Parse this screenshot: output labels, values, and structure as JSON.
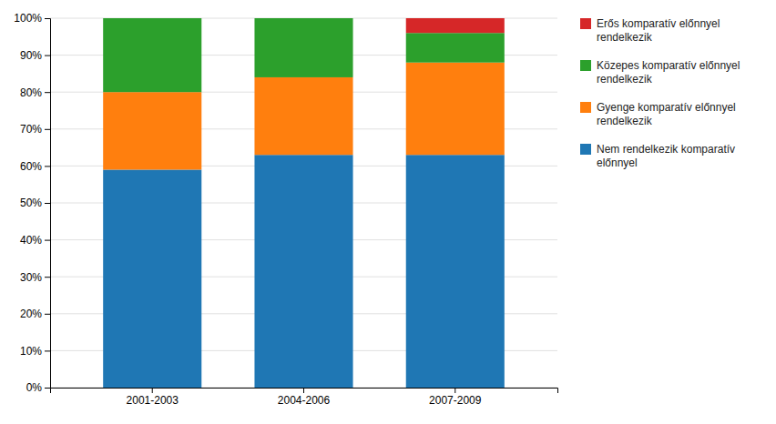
{
  "chart_data": {
    "type": "bar",
    "stacked": true,
    "categories": [
      "2001-2003",
      "2004-2006",
      "2007-2009"
    ],
    "series": [
      {
        "name": "Nem rendelkezik komparatív\nelőnnyel",
        "values": [
          59,
          63,
          63
        ]
      },
      {
        "name": "Gyenge komparatív előnnyel\nrendelkezik",
        "values": [
          21,
          21,
          25
        ]
      },
      {
        "name": "Közepes komparatív előnnyel\nrendelkezik",
        "values": [
          20,
          16,
          8
        ]
      },
      {
        "name": "Erős komparatív előnnyel\nrendelkezik",
        "values": [
          0,
          0,
          4
        ]
      }
    ],
    "ylim": [
      0,
      100
    ],
    "yticks": [
      {
        "value": 0,
        "label": "0%"
      },
      {
        "value": 10,
        "label": "10%"
      },
      {
        "value": 20,
        "label": "20%"
      },
      {
        "value": 30,
        "label": "30%"
      },
      {
        "value": 40,
        "label": "40%"
      },
      {
        "value": 50,
        "label": "50%"
      },
      {
        "value": 60,
        "label": "60%"
      },
      {
        "value": 70,
        "label": "70%"
      },
      {
        "value": 80,
        "label": "80%"
      },
      {
        "value": 90,
        "label": "90%"
      },
      {
        "value": 100,
        "label": "100%"
      }
    ],
    "grid": true,
    "legend": "right"
  }
}
